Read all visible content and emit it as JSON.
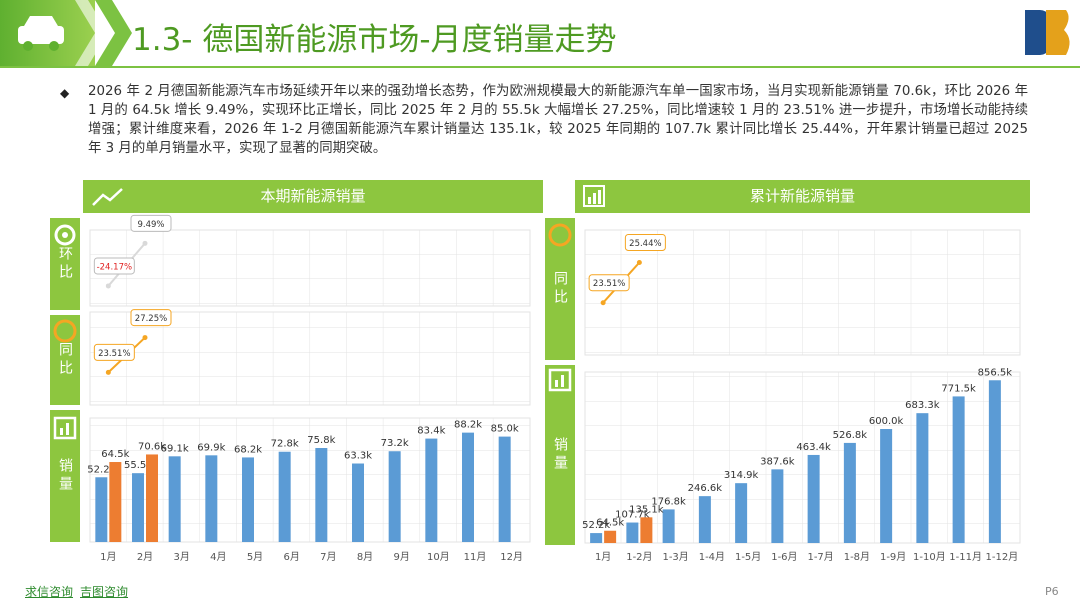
{
  "header": {
    "title": "1.3- 德国新能源市场-月度销量走势"
  },
  "summary": "2026 年 2 月德国新能源汽车市场延续开年以来的强劲增长态势，作为欧洲规模最大的新能源汽车单一国家市场，当月实现新能源销量 70.6k，环比 2026 年 1 月的 64.5k 增长 9.49%，实现环比正增长，同比 2025 年 2 月的 55.5k 大幅增长 27.25%，同比增速较 1 月的 23.51% 进一步提升，市场增长动能持续增强；累计维度来看，2026 年 1-2 月德国新能源汽车累计销量达 135.1k，较 2025 年同期的 107.7k 累计同比增长 25.44%，开年累计销量已超过 2025 年 3 月的单月销量水平，实现了显著的同期突破。",
  "chart_data": [
    {
      "type": "bar",
      "title": "本期新能源销量",
      "label": "销量",
      "categories": [
        "1月",
        "2月",
        "3月",
        "4月",
        "5月",
        "6月",
        "7月",
        "8月",
        "9月",
        "10月",
        "11月",
        "12月"
      ],
      "series": [
        {
          "color": "#5b9bd5",
          "values": [
            52.2,
            55.5,
            69.1,
            69.9,
            68.2,
            72.8,
            75.8,
            63.3,
            73.2,
            83.4,
            88.2,
            85.0
          ],
          "value_labels": [
            "52.2k",
            "55.5k",
            "69.1k",
            "69.9k",
            "68.2k",
            "72.8k",
            "75.8k",
            "63.3k",
            "73.2k",
            "83.4k",
            "88.2k",
            "85.0k"
          ]
        },
        {
          "color": "#ed7d31",
          "values": [
            64.5,
            70.6,
            null,
            null,
            null,
            null,
            null,
            null,
            null,
            null,
            null,
            null
          ],
          "value_labels": [
            "64.5k",
            "70.6k",
            null,
            null,
            null,
            null,
            null,
            null,
            null,
            null,
            null,
            null
          ]
        }
      ],
      "ylim": [
        0,
        100
      ]
    },
    {
      "type": "line",
      "label": "环比",
      "color": "#d9d9d9",
      "values": [
        -24.17,
        9.49,
        null,
        null,
        null,
        null,
        null,
        null,
        null,
        null,
        null,
        null
      ],
      "value_labels": [
        "-24.17%",
        "9.49%",
        null,
        null,
        null,
        null,
        null,
        null,
        null,
        null,
        null,
        null
      ],
      "ylim": [
        -40,
        20
      ]
    },
    {
      "type": "line",
      "label": "同比",
      "color": "#f5a623",
      "values": [
        23.51,
        27.25,
        null,
        null,
        null,
        null,
        null,
        null,
        null,
        null,
        null,
        null
      ],
      "value_labels": [
        "23.51%",
        "27.25%",
        null,
        null,
        null,
        null,
        null,
        null,
        null,
        null,
        null,
        null
      ],
      "ylim": [
        20,
        30
      ]
    },
    {
      "type": "bar",
      "title": "累计新能源销量",
      "label": "销量",
      "categories": [
        "1月",
        "1-2月",
        "1-3月",
        "1-4月",
        "1-5月",
        "1-6月",
        "1-7月",
        "1-8月",
        "1-9月",
        "1-10月",
        "1-11月",
        "1-12月"
      ],
      "series": [
        {
          "color": "#5b9bd5",
          "values": [
            52.2,
            107.7,
            176.8,
            246.6,
            314.9,
            387.6,
            463.4,
            526.8,
            600.0,
            683.3,
            771.5,
            856.5
          ],
          "value_labels": [
            "52.2k",
            "107.7k",
            "176.8k",
            "246.6k",
            "314.9k",
            "387.6k",
            "463.4k",
            "526.8k",
            "600.0k",
            "683.3k",
            "771.5k",
            "856.5k"
          ]
        },
        {
          "color": "#ed7d31",
          "values": [
            64.5,
            135.1,
            null,
            null,
            null,
            null,
            null,
            null,
            null,
            null,
            null,
            null
          ],
          "value_labels": [
            "64.5k",
            "135.1k",
            null,
            null,
            null,
            null,
            null,
            null,
            null,
            null,
            null,
            null
          ]
        }
      ],
      "ylim": [
        0,
        900
      ]
    },
    {
      "type": "line",
      "label": "同比",
      "color": "#f5a623",
      "values": [
        23.51,
        25.44,
        null,
        null,
        null,
        null,
        null,
        null,
        null,
        null,
        null,
        null
      ],
      "value_labels": [
        "23.51%",
        "25.44%",
        null,
        null,
        null,
        null,
        null,
        null,
        null,
        null,
        null,
        null
      ],
      "ylim": [
        21,
        27
      ]
    }
  ],
  "footer": {
    "links": [
      "求信咨询",
      "吉图咨询"
    ],
    "page": "P6"
  }
}
